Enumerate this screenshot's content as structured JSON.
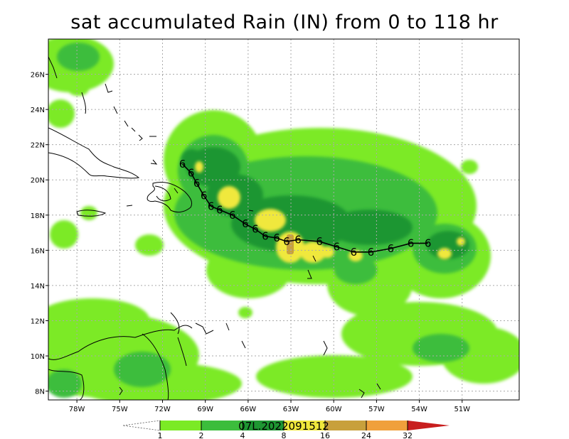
{
  "title": "sat accumulated Rain (IN) from 0 to 118 hr",
  "storm_id": "07L.2022091512",
  "map": {
    "lon_range": [
      -80,
      -47
    ],
    "lat_range": [
      7.5,
      28
    ],
    "lat_labels": [
      "8N",
      "10N",
      "12N",
      "14N",
      "16N",
      "18N",
      "20N",
      "22N",
      "24N",
      "26N"
    ],
    "lon_labels": [
      "78W",
      "75W",
      "72W",
      "69W",
      "66W",
      "63W",
      "60W",
      "57W",
      "54W",
      "51W"
    ],
    "grid": true
  },
  "colorbar": {
    "labels": [
      "1",
      "2",
      "4",
      "8",
      "16",
      "24",
      "32"
    ],
    "colors": [
      "#ffffff",
      "#7bea25",
      "#3cbd3c",
      "#1e9632",
      "#f0e83c",
      "#c8a03c",
      "#f0a03c",
      "#c81e1e"
    ]
  },
  "track": [
    [
      -70.6,
      20.9
    ],
    [
      -70.0,
      20.4
    ],
    [
      -69.6,
      19.8
    ],
    [
      -69.1,
      19.1
    ],
    [
      -68.6,
      18.5
    ],
    [
      -68.0,
      18.3
    ],
    [
      -67.1,
      18.0
    ],
    [
      -66.2,
      17.5
    ],
    [
      -65.5,
      17.2
    ],
    [
      -64.8,
      16.8
    ],
    [
      -64.0,
      16.7
    ],
    [
      -63.3,
      16.5
    ],
    [
      -62.5,
      16.6
    ],
    [
      -61.0,
      16.5
    ],
    [
      -59.8,
      16.2
    ],
    [
      -58.6,
      15.9
    ],
    [
      -57.4,
      15.9
    ],
    [
      -56.0,
      16.1
    ],
    [
      -54.6,
      16.4
    ],
    [
      -53.4,
      16.4
    ]
  ]
}
